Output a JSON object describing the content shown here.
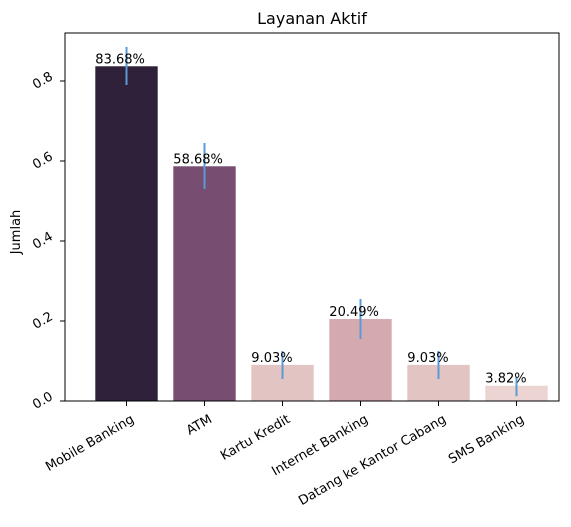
{
  "chart_data": {
    "type": "bar",
    "title": "Layanan Aktif",
    "xlabel": "",
    "ylabel": "Jumlah",
    "categories": [
      "Mobile Banking",
      "ATM",
      "Kartu Kredit",
      "Internet Banking",
      "Datang ke Kantor Cabang",
      "SMS Banking"
    ],
    "values": [
      0.8368,
      0.5868,
      0.0903,
      0.2049,
      0.0903,
      0.0382
    ],
    "data_labels": [
      "83.68%",
      "58.68%",
      "9.03%",
      "20.49%",
      "9.03%",
      "3.82%"
    ],
    "error_low": [
      0.79,
      0.53,
      0.055,
      0.155,
      0.055,
      0.012
    ],
    "error_high": [
      0.885,
      0.645,
      0.125,
      0.255,
      0.125,
      0.06
    ],
    "ylim": [
      0,
      0.92
    ],
    "yticks": [
      0.0,
      0.2,
      0.4,
      0.6,
      0.8
    ],
    "ytick_labels": [
      "0.0",
      "0.2",
      "0.4",
      "0.6",
      "0.8"
    ],
    "bar_colors": [
      "#2e2139",
      "#774e72",
      "#e2c4c3",
      "#d4a9b0",
      "#e2c4c3",
      "#ecd4d3"
    ],
    "error_color": "#5b9bd5",
    "grid": false,
    "legend": "none"
  }
}
